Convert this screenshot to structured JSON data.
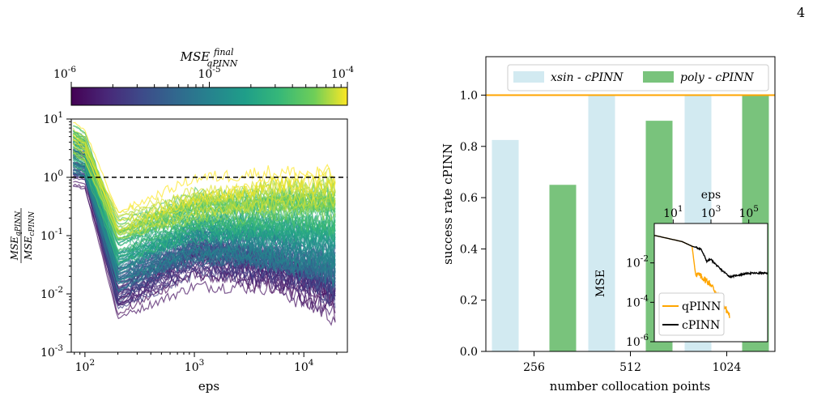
{
  "page_number": "4",
  "colors": {
    "viridis_low": "#440154",
    "viridis_high": "#fde725",
    "reference_line": "#000000",
    "xsin_bar": "#add8e6",
    "poly_bar": "#4caf50",
    "orange": "#ffa500",
    "black": "#000000"
  },
  "chart_data": [
    {
      "type": "line",
      "xlabel": "eps",
      "ylabel": "MSE_qPINN / MSE_cPINN",
      "xscale": "log",
      "yscale": "log",
      "xlim": [
        75,
        25000
      ],
      "ylim": [
        0.001,
        10
      ],
      "x_ticks": [
        100,
        1000,
        10000
      ],
      "x_tick_labels": [
        "10^2",
        "10^3",
        "10^4"
      ],
      "y_ticks": [
        0.001,
        0.01,
        0.1,
        1,
        10
      ],
      "y_tick_labels": [
        "10^-3",
        "10^-2",
        "10^-1",
        "10^0",
        "10^1"
      ],
      "reference_line": {
        "y": 1,
        "style": "dashed"
      },
      "series_count": 120,
      "series_summary": [
        {
          "final_mse_qpinn": 1e-06,
          "values_at": {
            "100": 1.2,
            "200": 0.006,
            "1000": 0.03,
            "5000": 0.02,
            "20000": 0.007
          }
        },
        {
          "final_mse_qpinn": 1e-05,
          "values_at": {
            "100": 2.0,
            "200": 0.03,
            "1000": 0.1,
            "5000": 0.08,
            "20000": 0.05
          }
        },
        {
          "final_mse_qpinn": 0.0001,
          "values_at": {
            "100": 4.0,
            "200": 0.2,
            "1000": 0.5,
            "5000": 0.8,
            "20000": 1.0
          }
        }
      ],
      "colorbar": {
        "title_base": "MSE",
        "title_sup": "final",
        "title_sub": "qPINN",
        "colormap": "viridis",
        "scale": "log",
        "range": [
          1e-06,
          0.0001
        ],
        "ticks": [
          1e-06,
          1e-05,
          0.0001
        ],
        "tick_labels": [
          "10^-6",
          "10^-5",
          "10^-4"
        ]
      }
    },
    {
      "type": "bar",
      "xlabel": "number collocation points",
      "ylabel": "success rate cPINN",
      "categories": [
        "256",
        "512",
        "1024"
      ],
      "series": [
        {
          "name": "xsin - cPINN",
          "values": [
            0.825,
            1.0,
            1.0
          ]
        },
        {
          "name": "poly - cPINN",
          "values": [
            0.65,
            0.9,
            1.0
          ]
        }
      ],
      "ylim": [
        0,
        1.15
      ],
      "y_ticks": [
        0.0,
        0.2,
        0.4,
        0.6,
        0.8,
        1.0
      ],
      "reference_line": {
        "y": 1.0
      },
      "legend_position": "top",
      "inset": {
        "type": "line",
        "xlabel": "eps",
        "ylabel": "MSE",
        "xscale": "log",
        "yscale": "log",
        "xlim": [
          1,
          1000000
        ],
        "ylim": [
          1e-06,
          1
        ],
        "x_ticks": [
          10,
          1000,
          100000
        ],
        "x_tick_labels": [
          "10^1",
          "10^3",
          "10^5"
        ],
        "y_ticks": [
          1e-06,
          0.0001,
          0.01
        ],
        "y_tick_labels": [
          "10^-6",
          "10^-4",
          "10^-2"
        ],
        "legend_position": "bottom-left",
        "series": [
          {
            "name": "qPINN",
            "x": [
              1,
              30,
              100,
              150,
              300,
              600,
              1000,
              3000,
              10000
            ],
            "y": [
              0.25,
              0.12,
              0.07,
              0.003,
              0.002,
              0.0012,
              0.0008,
              0.00015,
              2e-05
            ]
          },
          {
            "name": "cPINN",
            "x": [
              1,
              30,
              100,
              300,
              600,
              1000,
              3000,
              10000,
              100000,
              1000000
            ],
            "y": [
              0.25,
              0.12,
              0.07,
              0.05,
              0.012,
              0.015,
              0.005,
              0.002,
              0.003,
              0.003
            ]
          }
        ]
      }
    }
  ]
}
